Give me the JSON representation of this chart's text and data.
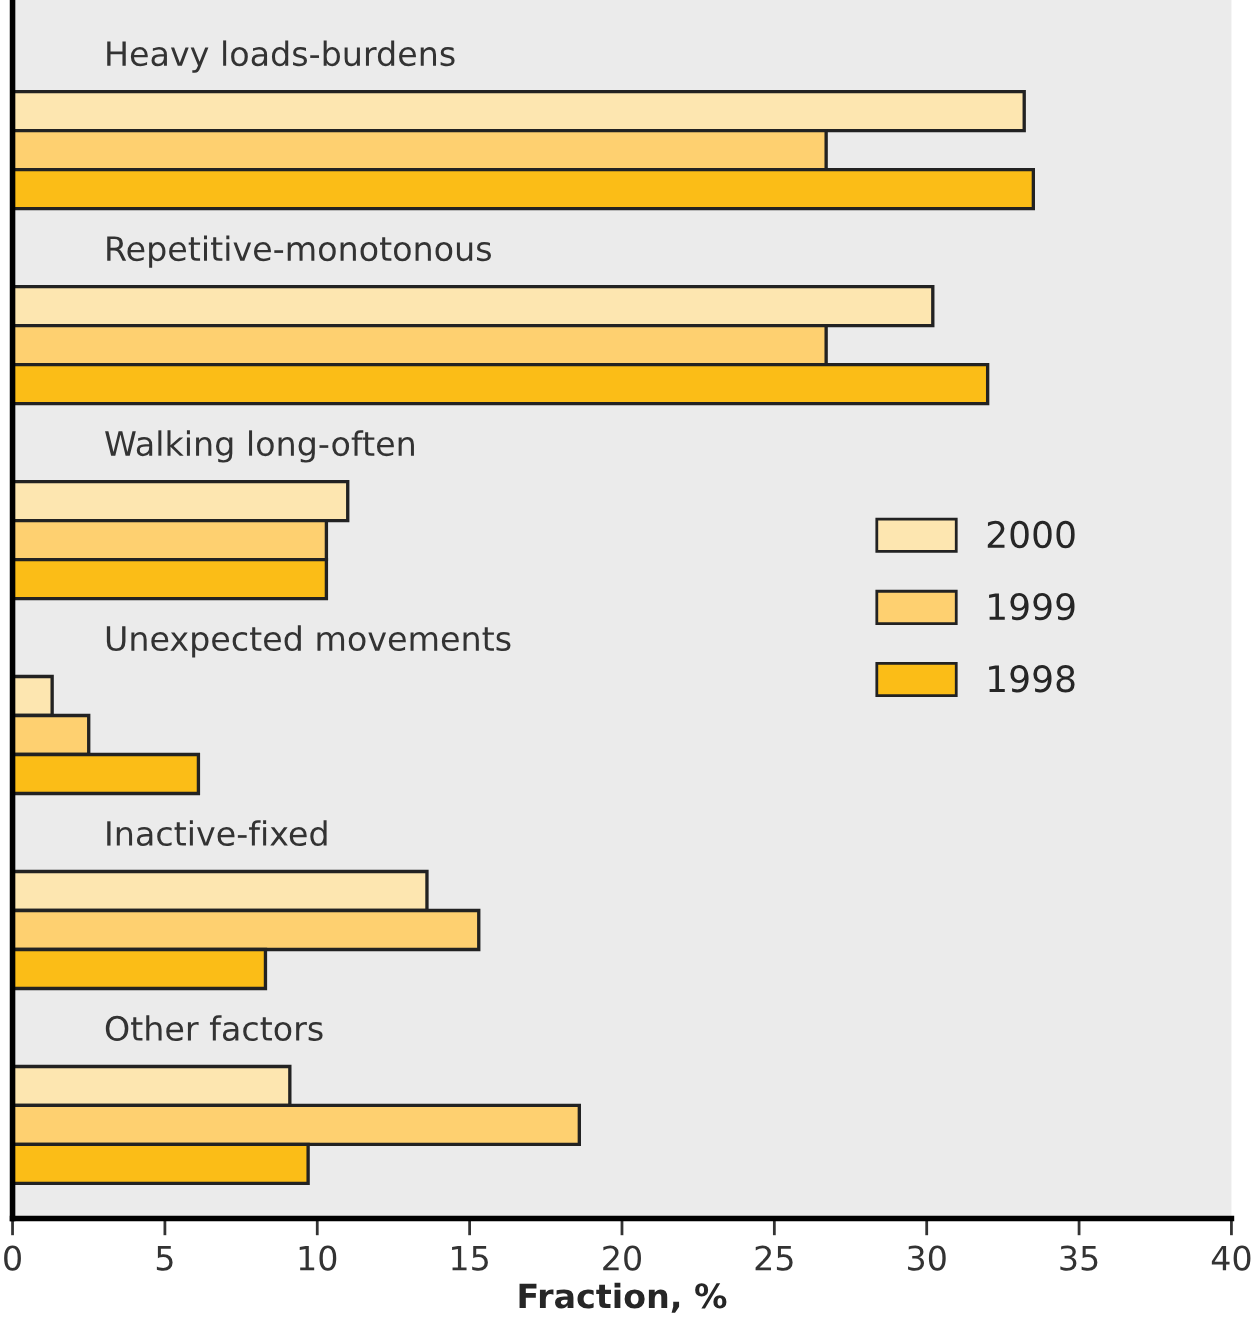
{
  "chart_data": {
    "type": "bar",
    "orientation": "horizontal",
    "xlabel": "Fraction, %",
    "categories": [
      "Heavy loads-burdens",
      "Repetitive-monotonous",
      "Walking long-often",
      "Unexpected movements",
      "Inactive-fixed",
      "Other factors"
    ],
    "series": [
      {
        "name": "2000",
        "color": "#fde6b0",
        "values": [
          33.2,
          30.2,
          11.0,
          1.3,
          13.6,
          9.1
        ]
      },
      {
        "name": "1999",
        "color": "#fed070",
        "values": [
          26.7,
          26.7,
          10.3,
          2.5,
          15.3,
          18.6
        ]
      },
      {
        "name": "1998",
        "color": "#fbbd17",
        "values": [
          33.5,
          32.0,
          10.3,
          6.1,
          8.3,
          9.7
        ]
      }
    ],
    "xlim": [
      0,
      40
    ],
    "xticks": [
      0,
      5,
      10,
      15,
      20,
      25,
      30,
      35,
      40
    ],
    "grid": false,
    "legend": "right"
  }
}
